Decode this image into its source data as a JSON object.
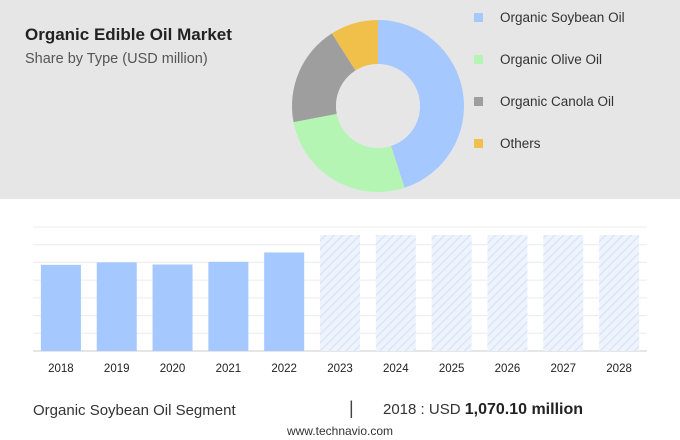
{
  "header": {
    "title": "Organic Edible Oil Market",
    "subtitle": "Share by Type (USD million)"
  },
  "colors": {
    "panel": "#e6e6e6",
    "soybean": "#a4c8ff",
    "olive": "#b4f5b4",
    "canola": "#9e9e9e",
    "others": "#f0c04a",
    "bar": "#a4c8ff",
    "forecast": "#d5e4fb"
  },
  "chart_data": [
    {
      "type": "pie",
      "donut": true,
      "categories": [
        "Organic Soybean Oil",
        "Organic Olive Oil",
        "Organic Canola Oil",
        "Others"
      ],
      "values": [
        45,
        27,
        19,
        9
      ],
      "legend_position": "right"
    },
    {
      "type": "bar",
      "categories": [
        "2018",
        "2019",
        "2020",
        "2021",
        "2022",
        "2023",
        "2024",
        "2025",
        "2026",
        "2027",
        "2028"
      ],
      "values": [
        1070.1,
        1100,
        1074,
        1108,
        1224,
        null,
        null,
        null,
        null,
        null,
        null
      ],
      "forecast_years": [
        "2023",
        "2024",
        "2025",
        "2026",
        "2027",
        "2028"
      ],
      "ylim": [
        0,
        1540
      ],
      "grid": true
    }
  ],
  "footer": {
    "segment": "Organic Soybean Oil Segment",
    "separator": "|",
    "year_label": "2018 : USD",
    "value": "1,070.10 million",
    "source": "www.technavio.com"
  }
}
